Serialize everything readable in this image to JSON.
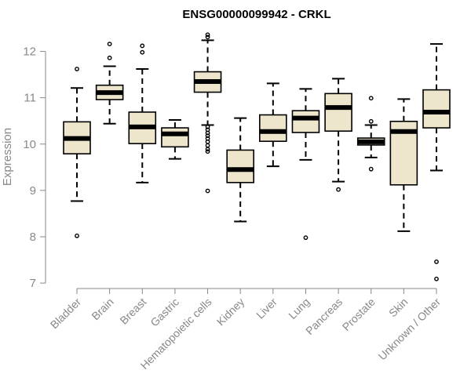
{
  "chart_data": {
    "type": "box",
    "title": "ENSG00000099942 - CRKL",
    "xlabel": "",
    "ylabel": "Expression",
    "ylim": [
      6.9,
      12.5
    ],
    "yticks": [
      7,
      8,
      9,
      10,
      11,
      12
    ],
    "box_color": "#ede6cc",
    "categories": [
      "Bladder",
      "Brain",
      "Breast",
      "Gastric",
      "Hematopoietic cells",
      "Kidney",
      "Liver",
      "Lung",
      "Pancreas",
      "Prostate",
      "Skin",
      "Unknown / Other"
    ],
    "boxes": [
      {
        "category": "Bladder",
        "whisker_low": 8.77,
        "q1": 9.79,
        "median": 10.12,
        "q3": 10.48,
        "whisker_high": 11.21,
        "outliers": [
          8.02,
          11.62
        ]
      },
      {
        "category": "Brain",
        "whisker_low": 10.44,
        "q1": 10.96,
        "median": 11.11,
        "q3": 11.27,
        "whisker_high": 11.68,
        "outliers": [
          11.86,
          12.16
        ]
      },
      {
        "category": "Breast",
        "whisker_low": 9.17,
        "q1": 10.01,
        "median": 10.37,
        "q3": 10.69,
        "whisker_high": 11.62,
        "outliers": [
          11.98,
          12.12
        ]
      },
      {
        "category": "Gastric",
        "whisker_low": 9.68,
        "q1": 9.94,
        "median": 10.22,
        "q3": 10.35,
        "whisker_high": 10.52,
        "outliers": []
      },
      {
        "category": "Hematopoietic cells",
        "whisker_low": 10.41,
        "q1": 11.12,
        "median": 11.35,
        "q3": 11.56,
        "whisker_high": 12.24,
        "outliers": [
          8.99,
          9.84,
          9.89,
          9.97,
          10.05,
          10.12,
          10.18,
          10.24,
          10.31,
          10.37,
          12.31,
          12.36
        ]
      },
      {
        "category": "Kidney",
        "whisker_low": 8.33,
        "q1": 9.17,
        "median": 9.45,
        "q3": 9.87,
        "whisker_high": 10.56,
        "outliers": []
      },
      {
        "category": "Liver",
        "whisker_low": 9.52,
        "q1": 10.06,
        "median": 10.27,
        "q3": 10.63,
        "whisker_high": 11.31,
        "outliers": []
      },
      {
        "category": "Lung",
        "whisker_low": 9.66,
        "q1": 10.25,
        "median": 10.56,
        "q3": 10.72,
        "whisker_high": 11.19,
        "outliers": [
          7.98
        ]
      },
      {
        "category": "Pancreas",
        "whisker_low": 9.19,
        "q1": 10.28,
        "median": 10.79,
        "q3": 11.09,
        "whisker_high": 11.41,
        "outliers": [
          9.02
        ]
      },
      {
        "category": "Prostate",
        "whisker_low": 9.71,
        "q1": 9.98,
        "median": 10.05,
        "q3": 10.13,
        "whisker_high": 10.41,
        "outliers": [
          9.46,
          10.49,
          10.99
        ]
      },
      {
        "category": "Skin",
        "whisker_low": 8.12,
        "q1": 9.12,
        "median": 10.27,
        "q3": 10.49,
        "whisker_high": 10.97,
        "outliers": []
      },
      {
        "category": "Unknown / Other",
        "whisker_low": 9.43,
        "q1": 10.35,
        "median": 10.69,
        "q3": 11.17,
        "whisker_high": 12.16,
        "outliers": [
          7.09,
          7.46
        ]
      }
    ]
  }
}
